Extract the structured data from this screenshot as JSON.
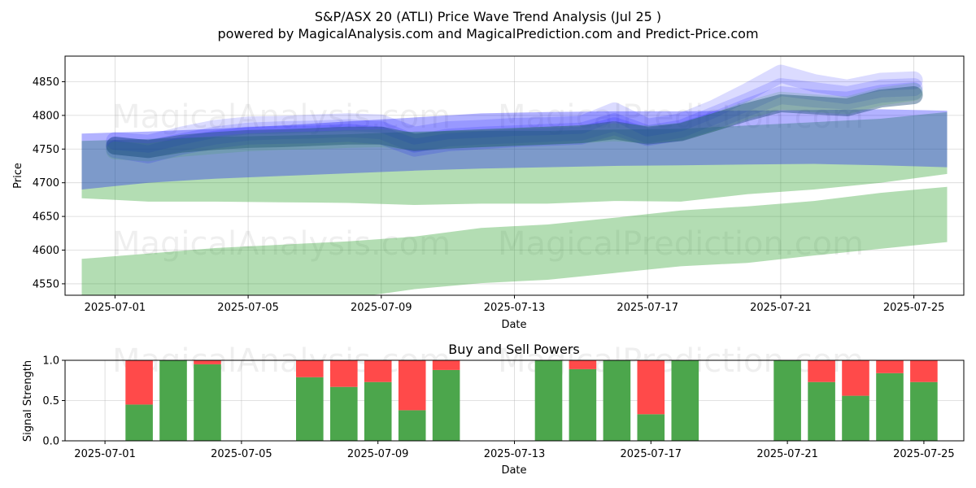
{
  "header": {
    "title": "S&P/ASX 20 (ATLI) Price Wave Trend Analysis (Jul 25 )",
    "subtitle": "powered by MagicalAnalysis.com and MagicalPrediction.com and Predict-Price.com"
  },
  "watermarks": [
    "MagicalAnalysis.com",
    "MagicalPrediction.com"
  ],
  "chart_data": [
    {
      "type": "area",
      "name": "price-wave-trend",
      "xlabel": "Date",
      "ylabel": "Price",
      "x_ticks": [
        "2025-07-01",
        "2025-07-05",
        "2025-07-09",
        "2025-07-13",
        "2025-07-17",
        "2025-07-21",
        "2025-07-25"
      ],
      "y_ticks": [
        4550,
        4600,
        4650,
        4700,
        4750,
        4800,
        4850
      ],
      "xlim": [
        "2025-06-29.5",
        "2025-07-26.5"
      ],
      "ylim": [
        4533,
        4888
      ],
      "grid": true,
      "colors": {
        "green": "#2ca02c",
        "blue": "#0000ff",
        "dark": "#1f4e79"
      },
      "green_bands": [
        {
          "x": [
            "2025-06-30",
            "2025-07-02",
            "2025-07-04",
            "2025-07-06",
            "2025-07-08",
            "2025-07-10",
            "2025-07-12",
            "2025-07-14",
            "2025-07-16",
            "2025-07-18",
            "2025-07-20",
            "2025-07-22",
            "2025-07-24",
            "2025-07-26"
          ],
          "upper": [
            4587,
            4595,
            4603,
            4608,
            4613,
            4620,
            4633,
            4638,
            4648,
            4659,
            4665,
            4673,
            4685,
            4694
          ],
          "lower": [
            4510,
            4515,
            4518,
            4522,
            4528,
            4542,
            4551,
            4556,
            4566,
            4576,
            4581,
            4592,
            4602,
            4612
          ]
        },
        {
          "x": [
            "2025-06-30",
            "2025-07-02",
            "2025-07-04",
            "2025-07-06",
            "2025-07-08",
            "2025-07-10",
            "2025-07-12",
            "2025-07-14",
            "2025-07-16",
            "2025-07-18",
            "2025-07-20",
            "2025-07-22",
            "2025-07-24",
            "2025-07-26"
          ],
          "upper": [
            4762,
            4765,
            4768,
            4770,
            4772,
            4776,
            4777,
            4777,
            4779,
            4780,
            4785,
            4790,
            4795,
            4805
          ],
          "lower": [
            4677,
            4672,
            4672,
            4671,
            4670,
            4667,
            4669,
            4669,
            4673,
            4672,
            4683,
            4690,
            4700,
            4713
          ]
        }
      ],
      "blue_bands": [
        {
          "x": [
            "2025-06-30",
            "2025-07-02",
            "2025-07-04",
            "2025-07-06",
            "2025-07-08",
            "2025-07-10",
            "2025-07-12",
            "2025-07-14",
            "2025-07-16",
            "2025-07-18",
            "2025-07-20",
            "2025-07-22",
            "2025-07-24",
            "2025-07-26"
          ],
          "upper": [
            4773,
            4776,
            4780,
            4785,
            4791,
            4797,
            4803,
            4805,
            4806,
            4806,
            4807,
            4808,
            4809,
            4807
          ],
          "lower": [
            4690,
            4700,
            4706,
            4710,
            4714,
            4718,
            4721,
            4723,
            4725,
            4726,
            4727,
            4728,
            4726,
            4723
          ]
        }
      ],
      "wave_lines": [
        {
          "color": "blue",
          "x": [
            "2025-07-01",
            "2025-07-02",
            "2025-07-03",
            "2025-07-04",
            "2025-07-05",
            "2025-07-06",
            "2025-07-07",
            "2025-07-08",
            "2025-07-09",
            "2025-07-10",
            "2025-07-11",
            "2025-07-12",
            "2025-07-13",
            "2025-07-14",
            "2025-07-15",
            "2025-07-16",
            "2025-07-17",
            "2025-07-18",
            "2025-07-19",
            "2025-07-20",
            "2025-07-21",
            "2025-07-22",
            "2025-07-23",
            "2025-07-24",
            "2025-07-25"
          ],
          "y": [
            4762,
            4758,
            4770,
            4780,
            4785,
            4786,
            4788,
            4790,
            4788,
            4770,
            4778,
            4780,
            4783,
            4784,
            4786,
            4806,
            4782,
            4790,
            4810,
            4835,
            4862,
            4848,
            4840,
            4850,
            4852
          ]
        },
        {
          "color": "blue",
          "x": [
            "2025-07-01",
            "2025-07-02",
            "2025-07-03",
            "2025-07-04",
            "2025-07-05",
            "2025-07-06",
            "2025-07-07",
            "2025-07-08",
            "2025-07-09",
            "2025-07-10",
            "2025-07-11",
            "2025-07-12",
            "2025-07-13",
            "2025-07-14",
            "2025-07-15",
            "2025-07-16",
            "2025-07-17",
            "2025-07-18",
            "2025-07-19",
            "2025-07-20",
            "2025-07-21",
            "2025-07-22",
            "2025-07-23",
            "2025-07-24",
            "2025-07-25"
          ],
          "y": [
            4755,
            4750,
            4760,
            4770,
            4776,
            4778,
            4779,
            4781,
            4778,
            4758,
            4767,
            4770,
            4772,
            4774,
            4776,
            4790,
            4772,
            4780,
            4800,
            4820,
            4842,
            4836,
            4830,
            4840,
            4842
          ]
        },
        {
          "color": "blue",
          "x": [
            "2025-07-01",
            "2025-07-02",
            "2025-07-03",
            "2025-07-04",
            "2025-07-05",
            "2025-07-06",
            "2025-07-07",
            "2025-07-08",
            "2025-07-09",
            "2025-07-10",
            "2025-07-11",
            "2025-07-12",
            "2025-07-13",
            "2025-07-14",
            "2025-07-15",
            "2025-07-16",
            "2025-07-17",
            "2025-07-18",
            "2025-07-19",
            "2025-07-20",
            "2025-07-21",
            "2025-07-22",
            "2025-07-23",
            "2025-07-24",
            "2025-07-25"
          ],
          "y": [
            4750,
            4742,
            4755,
            4764,
            4770,
            4771,
            4772,
            4774,
            4770,
            4752,
            4760,
            4763,
            4766,
            4768,
            4770,
            4784,
            4768,
            4776,
            4792,
            4812,
            4830,
            4825,
            4822,
            4832,
            4836
          ]
        },
        {
          "color": "dark",
          "x": [
            "2025-07-01",
            "2025-07-02",
            "2025-07-03",
            "2025-07-04",
            "2025-07-05",
            "2025-07-06",
            "2025-07-07",
            "2025-07-08",
            "2025-07-09",
            "2025-07-10",
            "2025-07-11",
            "2025-07-12",
            "2025-07-13",
            "2025-07-14",
            "2025-07-15",
            "2025-07-16",
            "2025-07-17",
            "2025-07-18",
            "2025-07-19",
            "2025-07-20",
            "2025-07-21",
            "2025-07-22",
            "2025-07-23",
            "2025-07-24",
            "2025-07-25"
          ],
          "y": [
            4755,
            4750,
            4758,
            4762,
            4765,
            4766,
            4768,
            4770,
            4770,
            4760,
            4764,
            4766,
            4768,
            4770,
            4772,
            4778,
            4770,
            4775,
            4790,
            4805,
            4818,
            4815,
            4812,
            4825,
            4830
          ]
        },
        {
          "color": "green",
          "x": [
            "2025-07-01",
            "2025-07-02",
            "2025-07-03",
            "2025-07-04",
            "2025-07-05",
            "2025-07-06",
            "2025-07-07",
            "2025-07-08",
            "2025-07-09",
            "2025-07-10",
            "2025-07-11",
            "2025-07-12",
            "2025-07-13",
            "2025-07-14",
            "2025-07-15",
            "2025-07-16",
            "2025-07-17",
            "2025-07-18",
            "2025-07-19",
            "2025-07-20",
            "2025-07-21",
            "2025-07-22",
            "2025-07-23",
            "2025-07-24",
            "2025-07-25"
          ],
          "y": [
            4748,
            4745,
            4752,
            4756,
            4760,
            4762,
            4763,
            4765,
            4766,
            4762,
            4764,
            4766,
            4768,
            4770,
            4772,
            4775,
            4772,
            4776,
            4790,
            4808,
            4822,
            4818,
            4815,
            4828,
            4835
          ]
        }
      ]
    },
    {
      "type": "bar",
      "name": "buy-sell-powers",
      "title": "Buy and Sell Powers",
      "xlabel": "Date",
      "ylabel": "Signal Strength",
      "x_ticks": [
        "2025-07-01",
        "2025-07-05",
        "2025-07-09",
        "2025-07-13",
        "2025-07-17",
        "2025-07-21",
        "2025-07-25"
      ],
      "y_ticks": [
        "0.0",
        "0.5",
        "1.0"
      ],
      "ylim": [
        0,
        1
      ],
      "grid": true,
      "colors": {
        "buy": "#4ca64c",
        "sell": "#ff4a4a"
      },
      "categories": [
        "2025-07-02",
        "2025-07-03",
        "2025-07-04",
        "2025-07-07",
        "2025-07-08",
        "2025-07-09",
        "2025-07-10",
        "2025-07-11",
        "2025-07-14",
        "2025-07-15",
        "2025-07-16",
        "2025-07-17",
        "2025-07-18",
        "2025-07-21",
        "2025-07-22",
        "2025-07-23",
        "2025-07-24",
        "2025-07-25"
      ],
      "series": [
        {
          "name": "buy",
          "values": [
            0.45,
            1.0,
            0.95,
            0.79,
            0.67,
            0.73,
            0.38,
            0.88,
            1.0,
            0.89,
            1.0,
            0.33,
            1.0,
            1.0,
            0.73,
            0.56,
            0.84,
            0.73
          ]
        },
        {
          "name": "sell",
          "values": [
            0.55,
            0.0,
            0.05,
            0.21,
            0.33,
            0.27,
            0.62,
            0.12,
            0.0,
            0.11,
            0.0,
            0.67,
            0.0,
            0.0,
            0.27,
            0.44,
            0.16,
            0.27
          ]
        }
      ]
    }
  ]
}
